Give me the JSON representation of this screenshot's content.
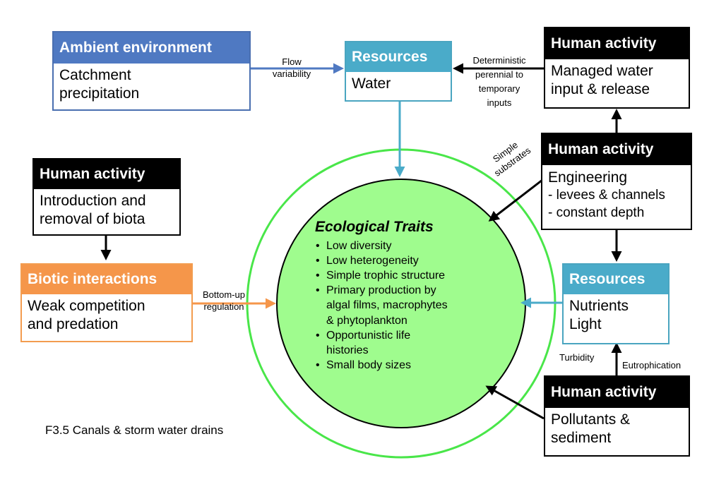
{
  "caption": "F3.5 Canals & storm water drains",
  "colors": {
    "ambient": "#4f79c2",
    "resources": "#4aabc9",
    "human": "#000000",
    "biotic": "#f5964a",
    "circle_fill": "#9ffc8e",
    "circle_ring": "#49e649"
  },
  "boxes": {
    "ambient": {
      "title": "Ambient environment",
      "lines": [
        "Catchment",
        "precipitation"
      ]
    },
    "resources_water": {
      "title": "Resources",
      "lines": [
        "Water"
      ]
    },
    "human_managed": {
      "title": "Human activity",
      "lines": [
        "Managed water",
        "input & release"
      ]
    },
    "human_engineering": {
      "title": "Human activity",
      "lines": [
        "Engineering",
        "- levees & channels",
        "- constant depth"
      ]
    },
    "human_biota": {
      "title": "Human activity",
      "lines": [
        "Introduction and",
        "removal of biota"
      ]
    },
    "biotic": {
      "title": "Biotic interactions",
      "lines": [
        "Weak competition",
        "and predation"
      ]
    },
    "resources_nutrients": {
      "title": "Resources",
      "lines": [
        "Nutrients",
        "Light"
      ]
    },
    "human_pollutants": {
      "title": "Human activity",
      "lines": [
        "Pollutants &",
        "sediment"
      ]
    }
  },
  "arrow_labels": {
    "flow": [
      "Flow",
      "variability"
    ],
    "deterministic": [
      "Deterministic",
      "perennial to",
      "temporary",
      "inputs"
    ],
    "substrates": [
      "Simple",
      "substrates"
    ],
    "bottom_up": [
      "Bottom-up",
      "regulation"
    ],
    "turbidity": "Turbidity",
    "eutrophication": "Eutrophication"
  },
  "traits": {
    "title": "Ecological Traits",
    "items": [
      "Low diversity",
      "Low heterogeneity",
      "Simple trophic structure",
      "Primary production by",
      "algal films, macrophytes",
      "& phytoplankton",
      "Opportunistic life",
      "histories",
      "Small body sizes"
    ],
    "bullets": [
      true,
      true,
      true,
      true,
      false,
      false,
      true,
      false,
      true
    ]
  }
}
